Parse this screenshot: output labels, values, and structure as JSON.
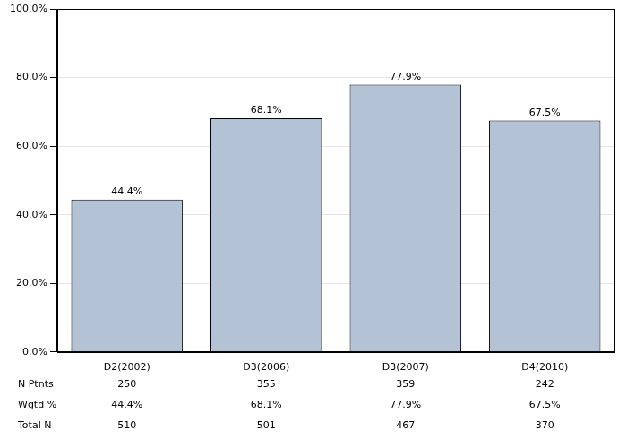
{
  "chart_data": {
    "type": "bar",
    "categories": [
      "D2(2002)",
      "D3(2006)",
      "D3(2007)",
      "D4(2010)"
    ],
    "values": [
      44.4,
      68.1,
      77.9,
      67.5
    ],
    "value_labels": [
      "44.4%",
      "68.1%",
      "77.9%",
      "67.5%"
    ],
    "data_labels": true,
    "color": "#b3c2d4",
    "ylim": [
      0,
      100
    ],
    "yticks": [
      {
        "value": 0,
        "label": "0.0%"
      },
      {
        "value": 20,
        "label": "20.0%"
      },
      {
        "value": 40,
        "label": "40.0%"
      },
      {
        "value": 60,
        "label": "60.0%"
      },
      {
        "value": 80,
        "label": "80.0%"
      },
      {
        "value": 100,
        "label": "100.0%"
      }
    ],
    "grid": true
  },
  "table": {
    "rows": [
      {
        "label": "N Ptnts",
        "values": [
          250,
          355,
          359,
          242
        ]
      },
      {
        "label": "Wgtd %",
        "values": [
          44.4,
          68.1,
          77.9,
          67.5
        ],
        "value_labels": [
          "44.4%",
          "68.1%",
          "77.9%",
          "67.5%"
        ]
      },
      {
        "label": "Total N",
        "values": [
          510,
          501,
          467,
          370
        ]
      }
    ]
  }
}
